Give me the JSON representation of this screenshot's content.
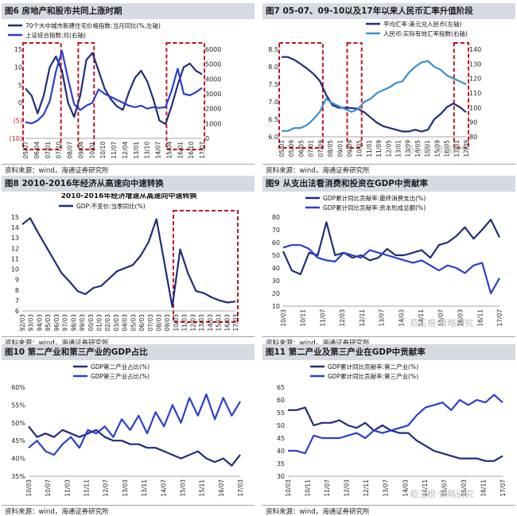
{
  "watermark": "荀玉根·策略研究",
  "chart_data": [
    {
      "id": "fig6",
      "type": "line",
      "title": "图6  房地产和股市共同上涨时期",
      "source": "资料来源：wind，海通证券研究所",
      "x_ticks": [
        "05/07",
        "06/04",
        "07/01",
        "07/10",
        "08/07",
        "09/04",
        "10/01",
        "10/10",
        "11/07",
        "12/04",
        "13/01",
        "13/10",
        "14/07",
        "15/04",
        "16/01",
        "16/10",
        "17/07"
      ],
      "left_axis": {
        "ticks": [
          "15",
          "10",
          "5",
          "0",
          "(5)",
          "(10)"
        ],
        "range": [
          -10,
          15
        ],
        "red_ticks": [
          "(5)",
          "(10)"
        ]
      },
      "right_axis": {
        "ticks": [
          "6000",
          "5000",
          "4000",
          "3000",
          "2000",
          "1000",
          "0"
        ],
        "range": [
          0,
          6000
        ]
      },
      "series": [
        {
          "name": "70个大中城市新建住宅价格指数:当月同比(%,左轴)",
          "axis": "left",
          "color": "#1f2d7a",
          "values": [
            4,
            2,
            -3,
            2,
            10,
            13,
            9,
            0,
            -4,
            2,
            12,
            14,
            9,
            4,
            1,
            -1,
            -2,
            3,
            7,
            9,
            6,
            1,
            -5,
            -6,
            -1,
            5,
            10,
            11,
            9,
            8
          ]
        },
        {
          "name": "上证综合指数:月(右轴)",
          "axis": "right",
          "color": "#2a3fd0",
          "values": [
            1100,
            1000,
            1200,
            1600,
            2500,
            4500,
            5900,
            4000,
            2300,
            1900,
            2200,
            2400,
            3300,
            3000,
            2800,
            2600,
            2400,
            2200,
            2100,
            2200,
            2000,
            2100,
            2050,
            2100,
            3200,
            4700,
            3000,
            2900,
            3100,
            3400
          ]
        }
      ],
      "highlights": [
        "05/07-07/10",
        "09/04-10/01",
        "15/04-17/07"
      ]
    },
    {
      "id": "fig7",
      "type": "line",
      "title": "图7  05-07、09-10以及17年以来人民币汇率升值阶段",
      "source": "资料来源：wind，海通证券研究所",
      "x_ticks": [
        "05/01",
        "05/09",
        "06/05",
        "07/01",
        "07/09",
        "08/05",
        "09/01",
        "09/09",
        "10/05",
        "11/01",
        "11/09",
        "12/05",
        "13/01",
        "13/09",
        "14/05",
        "15/01",
        "15/09",
        "16/05",
        "17/01",
        "17/09"
      ],
      "left_axis": {
        "ticks": [
          "8.5",
          "8.0",
          "7.5",
          "7.0",
          "6.5",
          "6.0"
        ],
        "range": [
          6.0,
          8.5
        ]
      },
      "right_axis": {
        "ticks": [
          "140",
          "130",
          "120",
          "110",
          "100",
          "90",
          "80"
        ],
        "range": [
          80,
          140
        ]
      },
      "series": [
        {
          "name": "平均汇率:美元兑人民币(左轴)",
          "axis": "left",
          "color": "#1f2d7a",
          "values": [
            8.28,
            8.28,
            8.2,
            8.08,
            7.95,
            7.8,
            7.6,
            7.2,
            6.9,
            6.83,
            6.83,
            6.82,
            6.8,
            6.7,
            6.55,
            6.4,
            6.3,
            6.25,
            6.2,
            6.15,
            6.15,
            6.2,
            6.15,
            6.2,
            6.5,
            6.65,
            6.85,
            6.95,
            6.85,
            6.7
          ]
        },
        {
          "name": "人民币:实际有效汇率指数(右轴)",
          "axis": "right",
          "color": "#3a8fd6",
          "values": [
            84,
            84,
            86,
            86,
            88,
            92,
            97,
            106,
            103,
            101,
            99,
            97,
            99,
            104,
            106,
            110,
            112,
            114,
            117,
            118,
            124,
            128,
            131,
            132,
            128,
            126,
            122,
            120,
            118,
            116
          ]
        }
      ],
      "highlights": [
        "05/01-07/09",
        "09/09-10/05",
        "17/01-17/09"
      ]
    },
    {
      "id": "fig8",
      "type": "line",
      "title": "图8  2010-2016年经济从高速向中速转换",
      "source": "资料来源：wind，海通证券研究所",
      "inner_title": "2010-2016年经济增速从高速向中速转换",
      "x_ticks": [
        "92/03",
        "93/03",
        "94/03",
        "95/03",
        "96/03",
        "97/03",
        "98/03",
        "99/03",
        "00/03",
        "01/03",
        "02/03",
        "03/03",
        "04/03",
        "05/03",
        "06/03",
        "07/03",
        "08/03",
        "09/03",
        "10/03",
        "11/03",
        "12/03",
        "13/03",
        "14/03",
        "15/03",
        "16/03",
        "17/03"
      ],
      "left_axis": {
        "ticks": [
          "15",
          "14",
          "13",
          "12",
          "11",
          "10",
          "9",
          "8",
          "7",
          "6"
        ],
        "range": [
          6,
          15
        ]
      },
      "series": [
        {
          "name": "GDP:不变价:当季同比(%)",
          "axis": "left",
          "color": "#1f2d7a",
          "values": [
            14.3,
            14.9,
            13.5,
            12.2,
            10.9,
            9.6,
            8.8,
            7.9,
            7.6,
            8.2,
            8.4,
            9.1,
            9.8,
            10.1,
            10.4,
            11.3,
            12.6,
            14.8,
            10.6,
            6.4,
            11.9,
            9.6,
            7.9,
            7.7,
            7.3,
            7.0,
            6.8,
            6.9
          ]
        }
      ],
      "highlights": [
        "10/03-17/03"
      ]
    },
    {
      "id": "fig9",
      "type": "line",
      "title": "图9  从支出法看消费和投资在GDP中贡献率",
      "source": "资料来源：wind，海通证券研究所",
      "x_ticks": [
        "10/03",
        "10/11",
        "11/07",
        "12/03",
        "12/11",
        "13/07",
        "14/03",
        "14/11",
        "15/07",
        "16/03",
        "16/11",
        "17/07"
      ],
      "left_axis": {
        "ticks": [
          "80",
          "70",
          "60",
          "50",
          "40",
          "30",
          "20",
          "10"
        ],
        "range": [
          10,
          80
        ]
      },
      "series": [
        {
          "name": "GDP累计同比贡献率:最终消费支出(%)",
          "axis": "left",
          "color": "#1f2d7a",
          "values": [
            53,
            38,
            35,
            52,
            50,
            76,
            50,
            52,
            48,
            50,
            46,
            48,
            55,
            50,
            50,
            52,
            54,
            48,
            58,
            60,
            65,
            72,
            63,
            70,
            78,
            64
          ]
        },
        {
          "name": "GDP累计同比贡献率:资本形成总额(%)",
          "axis": "left",
          "color": "#2a3fd0",
          "values": [
            56,
            58,
            58,
            55,
            48,
            46,
            45,
            52,
            50,
            48,
            54,
            52,
            50,
            48,
            46,
            44,
            46,
            42,
            38,
            42,
            40,
            36,
            42,
            44,
            20,
            32
          ]
        }
      ]
    },
    {
      "id": "fig10",
      "type": "line",
      "title": "图10  第二产业和第三产业的GDP占比",
      "source": "资料来源：wind，海通证券研究所",
      "x_ticks": [
        "10/03",
        "10/07",
        "11/03",
        "11/11",
        "12/07",
        "13/03",
        "13/11",
        "14/07",
        "15/03",
        "15/11",
        "16/07",
        "17/03"
      ],
      "left_axis": {
        "ticks": [
          "60%",
          "55%",
          "50%",
          "45%",
          "40%",
          "35%"
        ],
        "range": [
          35,
          60
        ]
      },
      "series": [
        {
          "name": "GDP第二产业占比(%)",
          "axis": "left",
          "color": "#1f2d7a",
          "values": [
            49,
            46,
            47,
            46,
            48,
            47,
            46,
            47,
            48,
            46,
            45,
            45,
            44,
            44,
            43,
            43,
            42,
            41,
            40,
            41,
            42,
            40,
            39,
            40,
            38,
            41
          ]
        },
        {
          "name": "GDP第三产业占比(%)",
          "axis": "left",
          "color": "#2a3fd0",
          "values": [
            43,
            45,
            42,
            41,
            44,
            46,
            43,
            48,
            47,
            49,
            46,
            51,
            48,
            52,
            47,
            53,
            49,
            55,
            50,
            57,
            52,
            58,
            51,
            57,
            52,
            56
          ]
        }
      ]
    },
    {
      "id": "fig11",
      "type": "line",
      "title": "图11  第二产业及第三产业在GDP中贡献率",
      "source": "资料来源：wind，海通证券研究所",
      "x_ticks": [
        "10/03",
        "10/11",
        "11/07",
        "12/03",
        "12/11",
        "13/07",
        "14/03",
        "14/11",
        "15/07",
        "16/03",
        "16/11",
        "17/07"
      ],
      "left_axis": {
        "ticks": [
          "65",
          "60",
          "55",
          "50",
          "45",
          "40",
          "35",
          "30"
        ],
        "range": [
          30,
          65
        ]
      },
      "series": [
        {
          "name": "GDP累计同比贡献率:第二产业(%)",
          "axis": "left",
          "color": "#1f2d7a",
          "values": [
            56,
            56,
            57,
            50,
            51,
            51,
            52,
            50,
            49,
            51,
            48,
            50,
            48,
            47,
            47,
            44,
            42,
            40,
            39,
            38,
            37,
            37,
            37,
            36,
            36,
            38
          ]
        },
        {
          "name": "GDP累计同比贡献率:第三产业(%)",
          "axis": "left",
          "color": "#2a3fd0",
          "values": [
            40,
            40,
            39,
            46,
            45,
            45,
            45,
            46,
            47,
            45,
            48,
            47,
            48,
            49,
            50,
            54,
            57,
            58,
            59,
            56,
            60,
            58,
            60,
            59,
            62,
            59
          ]
        }
      ]
    }
  ]
}
